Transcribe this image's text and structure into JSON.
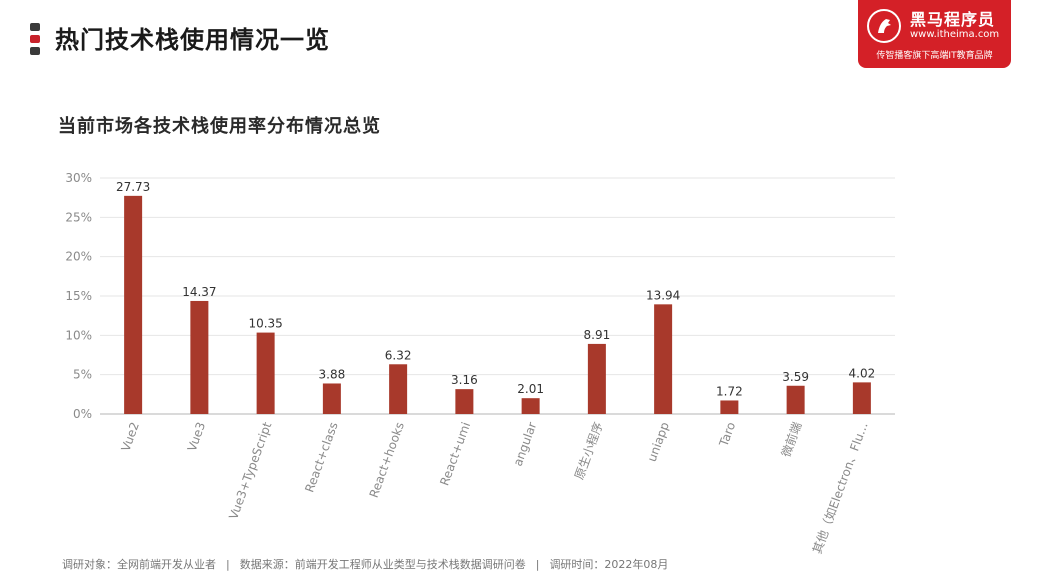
{
  "header": {
    "title": "热门技术栈使用情况一览"
  },
  "logo": {
    "name": "黑马程序员",
    "url": "www.itheima.com",
    "slogan": "传智播客旗下高端IT教育品牌"
  },
  "colors": {
    "bar": "#a8392b",
    "accent": "#d42027"
  },
  "chart_data": {
    "type": "bar",
    "title": "当前市场各技术栈使用率分布情况总览",
    "categories": [
      "Vue2",
      "Vue3",
      "Vue3+TypeScript",
      "React+class",
      "React+hooks",
      "React+umi",
      "angular",
      "原生小程序",
      "uniapp",
      "Taro",
      "微前端",
      "其他（如Electron、Flu…"
    ],
    "values": [
      27.73,
      14.37,
      10.35,
      3.88,
      6.32,
      3.16,
      2.01,
      8.91,
      13.94,
      1.72,
      3.59,
      4.02
    ],
    "data_labels": [
      "27.73",
      "14.37",
      "10.35",
      "3.88",
      "6.32",
      "3.16",
      "2.01",
      "8.91",
      "13.94",
      "1.72",
      "3.59",
      "4.02"
    ],
    "yticks": [
      0,
      5,
      10,
      15,
      20,
      25,
      30
    ],
    "ytick_labels": [
      "0%",
      "5%",
      "10%",
      "15%",
      "20%",
      "25%",
      "30%"
    ],
    "ylim": [
      0,
      30
    ],
    "grid": true,
    "legend": "none"
  },
  "footer": {
    "object": "调研对象：全网前端开发从业者",
    "source": "数据来源：前端开发工程师从业类型与技术栈数据调研问卷",
    "time": "调研时间：2022年08月",
    "separator": "|"
  }
}
